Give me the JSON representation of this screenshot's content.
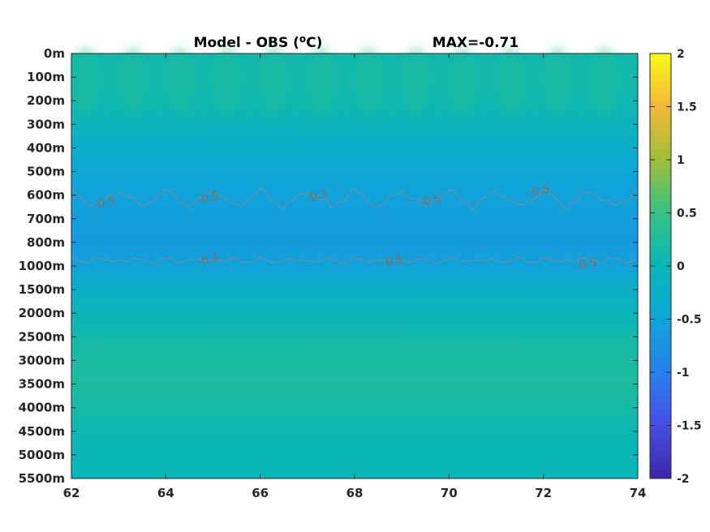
{
  "chart_data": {
    "type": "heatmap",
    "title": "Model - OBS (",
    "title_superscript": "o",
    "title_unit_suffix": "C)",
    "annotation": "MAX=-0.71",
    "xlabel": "",
    "ylabel": "",
    "xlim": [
      62,
      74
    ],
    "x_ticks": [
      "62",
      "64",
      "66",
      "68",
      "70",
      "72",
      "74"
    ],
    "y_ticks": [
      "0m",
      "100m",
      "200m",
      "300m",
      "400m",
      "500m",
      "600m",
      "700m",
      "800m",
      "1000m",
      "1500m",
      "2000m",
      "2500m",
      "3000m",
      "3500m",
      "4000m",
      "4500m",
      "5000m",
      "5500m"
    ],
    "colorbar": {
      "min": -2,
      "max": 2,
      "ticks": [
        "2",
        "1.5",
        "1",
        "0.5",
        "0",
        "-0.5",
        "-1",
        "-1.5",
        "-2"
      ],
      "colormap": "parula"
    },
    "depth_profile": [
      {
        "depth": "0m",
        "value": 0.05
      },
      {
        "depth": "100m",
        "value": 0.1
      },
      {
        "depth": "200m",
        "value": 0.05
      },
      {
        "depth": "300m",
        "value": -0.1
      },
      {
        "depth": "400m",
        "value": -0.3
      },
      {
        "depth": "500m",
        "value": -0.45
      },
      {
        "depth": "600m",
        "value": -0.55
      },
      {
        "depth": "700m",
        "value": -0.6
      },
      {
        "depth": "800m",
        "value": -0.65
      },
      {
        "depth": "1000m",
        "value": -0.55
      },
      {
        "depth": "1500m",
        "value": -0.25
      },
      {
        "depth": "2000m",
        "value": -0.05
      },
      {
        "depth": "2500m",
        "value": 0.1
      },
      {
        "depth": "3000m",
        "value": 0.18
      },
      {
        "depth": "3500m",
        "value": 0.2
      },
      {
        "depth": "4000m",
        "value": 0.12
      },
      {
        "depth": "4500m",
        "value": 0.02
      },
      {
        "depth": "5000m",
        "value": -0.05
      },
      {
        "depth": "5500m",
        "value": -0.05
      }
    ],
    "contour_level": -0.5,
    "contour_labels": [
      {
        "text": "-0.5",
        "x": 62.7,
        "depth_index": 6.3
      },
      {
        "text": "-0.5",
        "x": 64.9,
        "depth_index": 6.1
      },
      {
        "text": "-0.5",
        "x": 67.2,
        "depth_index": 6.0
      },
      {
        "text": "-0.5",
        "x": 69.6,
        "depth_index": 6.2
      },
      {
        "text": "-0.5",
        "x": 71.9,
        "depth_index": 5.8
      },
      {
        "text": "-0.5",
        "x": 64.9,
        "depth_index": 8.7
      },
      {
        "text": "-0.5",
        "x": 68.8,
        "depth_index": 8.8
      },
      {
        "text": "-0.5",
        "x": 72.9,
        "depth_index": 8.9
      }
    ],
    "grid": false,
    "legend": "colorbar-right"
  }
}
